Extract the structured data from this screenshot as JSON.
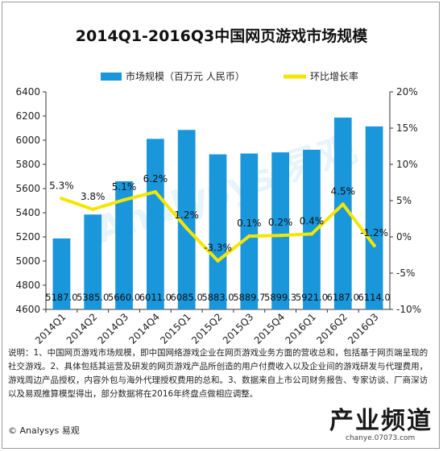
{
  "page": {
    "title": "2014Q1-2016Q3中国网页游戏市场规模",
    "note": "说明：1、中国网页游戏市场规模，即中国网络游戏企业在网页游戏业务方面的营收总和，包括基于网页端呈现的社交游戏。2、具体包括其运营及研发的网页游戏产品所创造的用户付费收入以及企业间的游戏研发与代理费用，游戏周边产品授权，内容外包与海外代理授权费用的总和。3、数据来自上市公司财务报告、专家访谈、厂商深访以及易观推算模型得出，部分数据将在2016年终盘点做相应调整。",
    "credit": "© Analysys 易观",
    "watermark": {
      "brand": "Analysys 易观",
      "logo_text": "产业频道",
      "logo_url": "chanye.07073.com"
    }
  },
  "chart_data": {
    "type": "bar",
    "title": "2014Q1-2016Q3中国网页游戏市场规模",
    "categories": [
      "2014Q1",
      "2014Q2",
      "2014Q3",
      "2014Q4",
      "2015Q1",
      "2015Q2",
      "2015Q3",
      "2015Q4",
      "2016Q1",
      "2016Q2",
      "2016Q3"
    ],
    "series": [
      {
        "name": "市场规模（百万元 人民币）",
        "type": "bar",
        "axis": "left",
        "color": "#1a96db",
        "values": [
          5187.0,
          5385.0,
          5660.0,
          6011.0,
          6085.0,
          5883.0,
          5889.7,
          5899.3,
          5921.0,
          6187.0,
          6114.0
        ],
        "labels": [
          "5187.0",
          "5385.0",
          "5660.0",
          "6011.0",
          "6085.0",
          "5883.0",
          "5889.7",
          "5899.3",
          "5921.0",
          "6187.0",
          "6114.0"
        ]
      },
      {
        "name": "环比增长率",
        "type": "line",
        "axis": "right",
        "color": "#f5e600",
        "values": [
          5.3,
          3.8,
          5.1,
          6.2,
          1.2,
          -3.3,
          0.1,
          0.2,
          0.4,
          4.5,
          -1.2
        ],
        "labels": [
          "5.3%",
          "3.8%",
          "5.1%",
          "6.2%",
          "1.2%",
          "-3.3%",
          "0.1%",
          "0.2%",
          "0.4%",
          "4.5%",
          "-1.2%"
        ]
      }
    ],
    "y_left": {
      "range": [
        4600,
        6400
      ],
      "ticks": [
        4600,
        4800,
        5000,
        5200,
        5400,
        5600,
        5800,
        6000,
        6200,
        6400
      ],
      "tick_labels": [
        "4600",
        "4800",
        "5000",
        "5200",
        "5400",
        "5600",
        "5800",
        "6000",
        "6200",
        "6400"
      ]
    },
    "y_right": {
      "range": [
        -10,
        20
      ],
      "ticks": [
        -10,
        -5,
        0,
        5,
        10,
        15,
        20
      ],
      "tick_labels": [
        "-10%",
        "-5%",
        "0%",
        "5%",
        "10%",
        "15%",
        "20%"
      ]
    },
    "grid": false,
    "legend_position": "top",
    "colors": {
      "bar": "#1a96db",
      "line": "#f5e600",
      "axis": "#333333"
    }
  }
}
